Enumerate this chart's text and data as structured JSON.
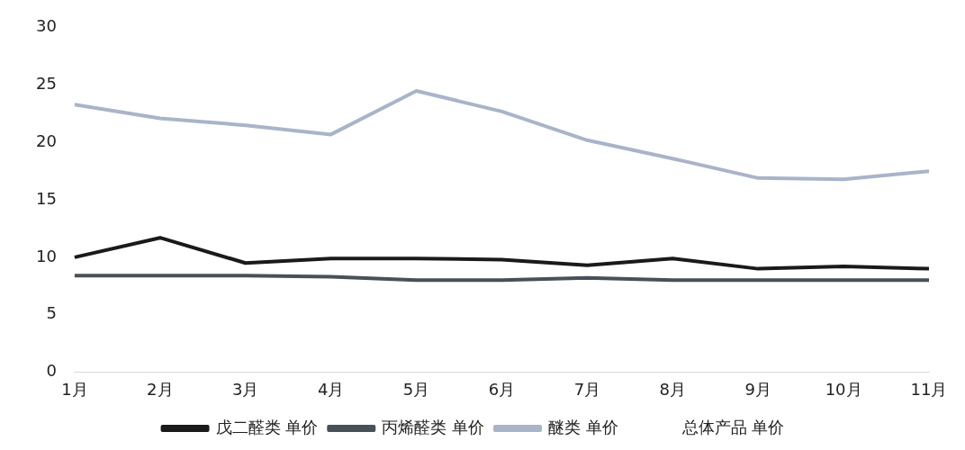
{
  "chart_data": {
    "type": "line",
    "categories": [
      "1月",
      "2月",
      "3月",
      "4月",
      "5月",
      "6月",
      "7月",
      "8月",
      "9月",
      "10月",
      "11月"
    ],
    "series": [
      {
        "name": "戊二醛类 单价",
        "color": "#1a1a1a",
        "values": [
          10.0,
          11.7,
          9.5,
          9.9,
          9.9,
          9.8,
          9.3,
          9.9,
          9.0,
          9.2,
          9.0
        ]
      },
      {
        "name": "丙烯醛类 单价",
        "color": "#4a5058",
        "values": [
          8.4,
          8.4,
          8.4,
          8.3,
          8.0,
          8.0,
          8.2,
          8.0,
          8.0,
          8.0,
          8.0
        ]
      },
      {
        "name": "醚类 单价",
        "color": "#a9b4c8",
        "values": [
          23.3,
          22.1,
          21.5,
          20.7,
          24.5,
          22.7,
          20.2,
          18.6,
          16.9,
          16.8,
          17.5
        ]
      },
      {
        "name": "总体产品 单价",
        "values": [
          null,
          null,
          null,
          null,
          null,
          null,
          null,
          null,
          null,
          null,
          null
        ]
      }
    ],
    "ylim": [
      0,
      30
    ],
    "yticks": [
      0,
      5,
      10,
      15,
      20,
      25,
      30
    ],
    "grid": false,
    "legend": "bottom",
    "marker": "none",
    "line_style": "solid"
  }
}
